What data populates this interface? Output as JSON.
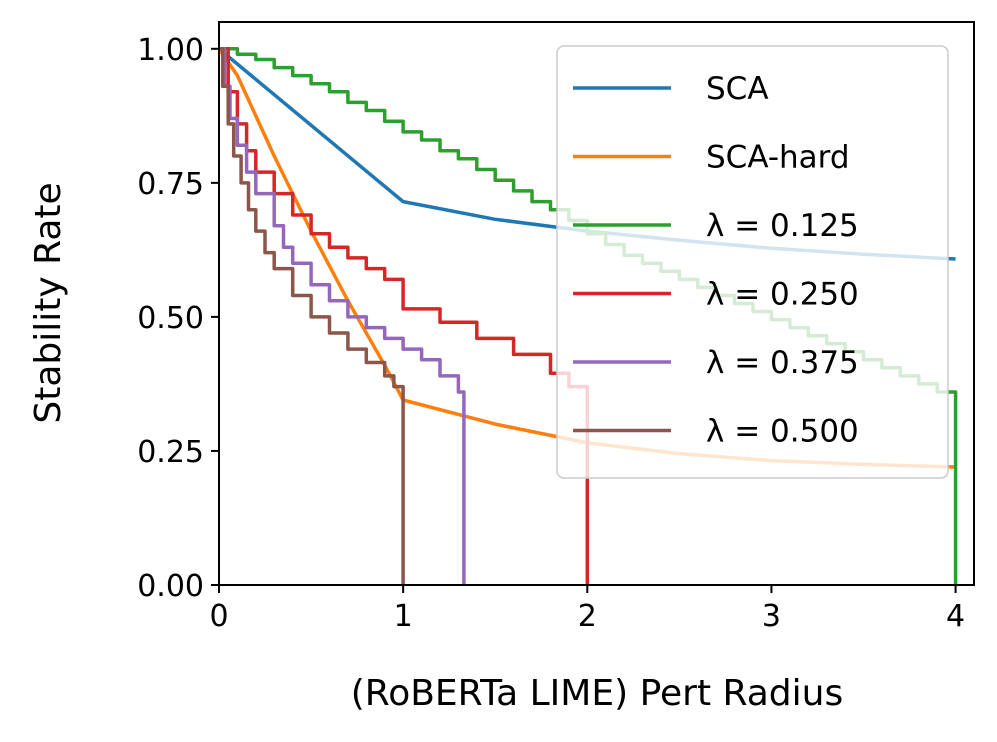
{
  "chart_data": {
    "type": "line",
    "title": "",
    "xlabel": "(RoBERTa LIME) Pert Radius",
    "ylabel": "Stability Rate",
    "xlim": [
      0,
      4.1
    ],
    "ylim": [
      0,
      1.05
    ],
    "xticks": [
      0,
      1,
      2,
      3,
      4
    ],
    "xtick_labels": [
      "0",
      "1",
      "2",
      "3",
      "4"
    ],
    "yticks": [
      0,
      0.25,
      0.5,
      0.75,
      1.0
    ],
    "ytick_labels": [
      "0.00",
      "0.25",
      "0.50",
      "0.75",
      "1.00"
    ],
    "legend_position": "upper-right",
    "series": [
      {
        "name": "SCA",
        "color": "#1f77b4",
        "step": false,
        "points": [
          [
            0,
            1.0
          ],
          [
            1.0,
            0.715
          ],
          [
            1.5,
            0.682
          ],
          [
            2.0,
            0.66
          ],
          [
            2.5,
            0.643
          ],
          [
            3.0,
            0.628
          ],
          [
            3.5,
            0.617
          ],
          [
            4.0,
            0.608
          ]
        ]
      },
      {
        "name": "SCA-hard",
        "color": "#ff7f0e",
        "step": false,
        "points": [
          [
            0,
            1.0
          ],
          [
            0.1,
            0.95
          ],
          [
            0.3,
            0.8
          ],
          [
            0.5,
            0.66
          ],
          [
            0.7,
            0.53
          ],
          [
            0.9,
            0.41
          ],
          [
            1.0,
            0.345
          ],
          [
            1.5,
            0.3
          ],
          [
            2.0,
            0.265
          ],
          [
            2.5,
            0.245
          ],
          [
            3.0,
            0.232
          ],
          [
            3.5,
            0.225
          ],
          [
            4.0,
            0.22
          ]
        ]
      },
      {
        "name": "λ = 0.125",
        "color": "#2ca02c",
        "step": true,
        "points": [
          [
            0,
            1.0
          ],
          [
            0.1,
            0.99
          ],
          [
            0.2,
            0.98
          ],
          [
            0.3,
            0.965
          ],
          [
            0.4,
            0.95
          ],
          [
            0.5,
            0.935
          ],
          [
            0.6,
            0.92
          ],
          [
            0.7,
            0.9
          ],
          [
            0.8,
            0.885
          ],
          [
            0.9,
            0.865
          ],
          [
            1.0,
            0.845
          ],
          [
            1.1,
            0.83
          ],
          [
            1.2,
            0.81
          ],
          [
            1.3,
            0.795
          ],
          [
            1.4,
            0.775
          ],
          [
            1.5,
            0.755
          ],
          [
            1.6,
            0.735
          ],
          [
            1.7,
            0.715
          ],
          [
            1.8,
            0.7
          ],
          [
            1.9,
            0.68
          ],
          [
            2.0,
            0.655
          ],
          [
            2.1,
            0.635
          ],
          [
            2.2,
            0.615
          ],
          [
            2.3,
            0.6
          ],
          [
            2.4,
            0.585
          ],
          [
            2.5,
            0.57
          ],
          [
            2.6,
            0.555
          ],
          [
            2.7,
            0.54
          ],
          [
            2.8,
            0.525
          ],
          [
            2.9,
            0.51
          ],
          [
            3.0,
            0.495
          ],
          [
            3.1,
            0.48
          ],
          [
            3.2,
            0.465
          ],
          [
            3.3,
            0.45
          ],
          [
            3.4,
            0.435
          ],
          [
            3.5,
            0.42
          ],
          [
            3.6,
            0.405
          ],
          [
            3.7,
            0.39
          ],
          [
            3.8,
            0.375
          ],
          [
            3.9,
            0.36
          ],
          [
            4.0,
            0.35
          ],
          [
            4.0,
            0.0
          ]
        ]
      },
      {
        "name": "λ = 0.250",
        "color": "#d62728",
        "step": true,
        "points": [
          [
            0,
            1.0
          ],
          [
            0.05,
            0.92
          ],
          [
            0.1,
            0.86
          ],
          [
            0.15,
            0.81
          ],
          [
            0.2,
            0.77
          ],
          [
            0.3,
            0.73
          ],
          [
            0.4,
            0.69
          ],
          [
            0.5,
            0.655
          ],
          [
            0.6,
            0.63
          ],
          [
            0.7,
            0.61
          ],
          [
            0.8,
            0.59
          ],
          [
            0.9,
            0.57
          ],
          [
            1.0,
            0.545
          ],
          [
            1.0,
            0.515
          ],
          [
            1.2,
            0.49
          ],
          [
            1.4,
            0.46
          ],
          [
            1.6,
            0.43
          ],
          [
            1.8,
            0.395
          ],
          [
            1.9,
            0.37
          ],
          [
            2.0,
            0.35
          ],
          [
            2.0,
            0.0
          ]
        ]
      },
      {
        "name": "λ = 0.375",
        "color": "#9467bd",
        "step": true,
        "points": [
          [
            0,
            1.0
          ],
          [
            0.03,
            0.93
          ],
          [
            0.06,
            0.87
          ],
          [
            0.1,
            0.82
          ],
          [
            0.15,
            0.77
          ],
          [
            0.2,
            0.73
          ],
          [
            0.3,
            0.67
          ],
          [
            0.35,
            0.63
          ],
          [
            0.4,
            0.6
          ],
          [
            0.5,
            0.56
          ],
          [
            0.6,
            0.53
          ],
          [
            0.7,
            0.5
          ],
          [
            0.8,
            0.48
          ],
          [
            0.9,
            0.46
          ],
          [
            1.0,
            0.44
          ],
          [
            1.1,
            0.42
          ],
          [
            1.2,
            0.39
          ],
          [
            1.3,
            0.36
          ],
          [
            1.33,
            0.35
          ],
          [
            1.33,
            0.0
          ]
        ]
      },
      {
        "name": "λ = 0.500",
        "color": "#8c564b",
        "step": true,
        "points": [
          [
            0,
            1.0
          ],
          [
            0.02,
            0.93
          ],
          [
            0.05,
            0.86
          ],
          [
            0.08,
            0.8
          ],
          [
            0.12,
            0.75
          ],
          [
            0.16,
            0.7
          ],
          [
            0.2,
            0.66
          ],
          [
            0.25,
            0.62
          ],
          [
            0.3,
            0.59
          ],
          [
            0.4,
            0.54
          ],
          [
            0.5,
            0.5
          ],
          [
            0.6,
            0.47
          ],
          [
            0.7,
            0.44
          ],
          [
            0.8,
            0.415
          ],
          [
            0.9,
            0.39
          ],
          [
            0.95,
            0.37
          ],
          [
            1.0,
            0.35
          ],
          [
            1.0,
            0.0
          ]
        ]
      }
    ]
  }
}
